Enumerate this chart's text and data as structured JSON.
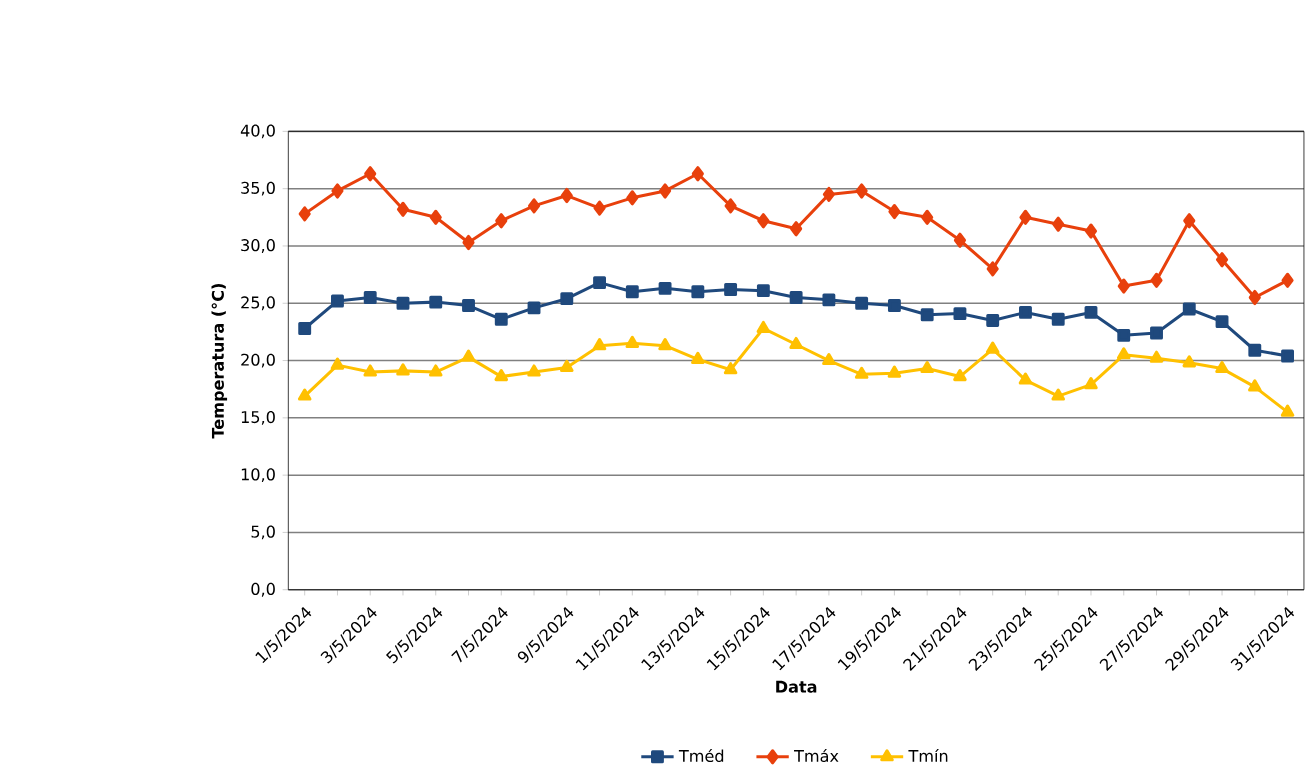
{
  "chart_data": {
    "type": "line",
    "xlabel": "Data",
    "ylabel": "Temperatura (°C)",
    "categories": [
      "1/5/2024",
      null,
      "3/5/2024",
      null,
      "5/5/2024",
      null,
      "7/5/2024",
      null,
      "9/5/2024",
      null,
      "11/5/2024",
      null,
      "13/5/2024",
      null,
      "15/5/2024",
      null,
      "17/5/2024",
      null,
      "19/5/2024",
      null,
      "21/5/2024",
      null,
      "23/5/2024",
      null,
      "25/5/2024",
      null,
      "27/5/2024",
      null,
      "29/5/2024",
      null,
      "31/5/2024"
    ],
    "series": [
      {
        "name": "Tméd",
        "color": "#1f497d",
        "marker": "square",
        "values": [
          22.8,
          25.2,
          25.5,
          25.0,
          25.1,
          24.8,
          23.6,
          24.6,
          25.4,
          26.8,
          26.0,
          26.3,
          26.0,
          26.2,
          26.1,
          25.5,
          25.3,
          25.0,
          24.8,
          24.0,
          24.1,
          23.5,
          24.2,
          23.6,
          24.2,
          22.2,
          22.4,
          24.5,
          23.4,
          20.9,
          20.4
        ]
      },
      {
        "name": "Tmáx",
        "color": "#e8400c",
        "marker": "diamond",
        "values": [
          32.8,
          34.8,
          36.3,
          33.2,
          32.5,
          30.3,
          32.2,
          33.5,
          34.4,
          33.3,
          34.2,
          34.8,
          36.3,
          33.5,
          32.2,
          31.5,
          34.5,
          34.8,
          33.0,
          32.5,
          30.5,
          28.0,
          32.5,
          31.9,
          31.3,
          26.5,
          27.0,
          32.2,
          28.8,
          25.5,
          27.0
        ]
      },
      {
        "name": "Tmín",
        "color": "#ffc000",
        "marker": "triangle",
        "values": [
          16.9,
          19.6,
          19.0,
          19.1,
          19.0,
          20.3,
          18.6,
          19.0,
          19.4,
          21.3,
          21.5,
          21.3,
          20.1,
          19.2,
          22.8,
          21.4,
          20.0,
          18.8,
          18.9,
          19.3,
          18.6,
          21.0,
          18.3,
          16.9,
          17.9,
          20.5,
          20.2,
          19.8,
          19.3,
          17.7,
          15.5
        ]
      }
    ],
    "ylim": [
      0,
      40
    ],
    "yticks": [
      {
        "value": 0,
        "label": "0,0"
      },
      {
        "value": 5,
        "label": "5,0"
      },
      {
        "value": 10,
        "label": "10,0"
      },
      {
        "value": 15,
        "label": "15,0"
      },
      {
        "value": 20,
        "label": "20,0"
      },
      {
        "value": 25,
        "label": "25,0"
      },
      {
        "value": 30,
        "label": "30,0"
      },
      {
        "value": 35,
        "label": "35,0"
      },
      {
        "value": 40,
        "label": "40,0"
      }
    ],
    "grid": "y",
    "legend": "bottom",
    "line_style": "solid"
  }
}
